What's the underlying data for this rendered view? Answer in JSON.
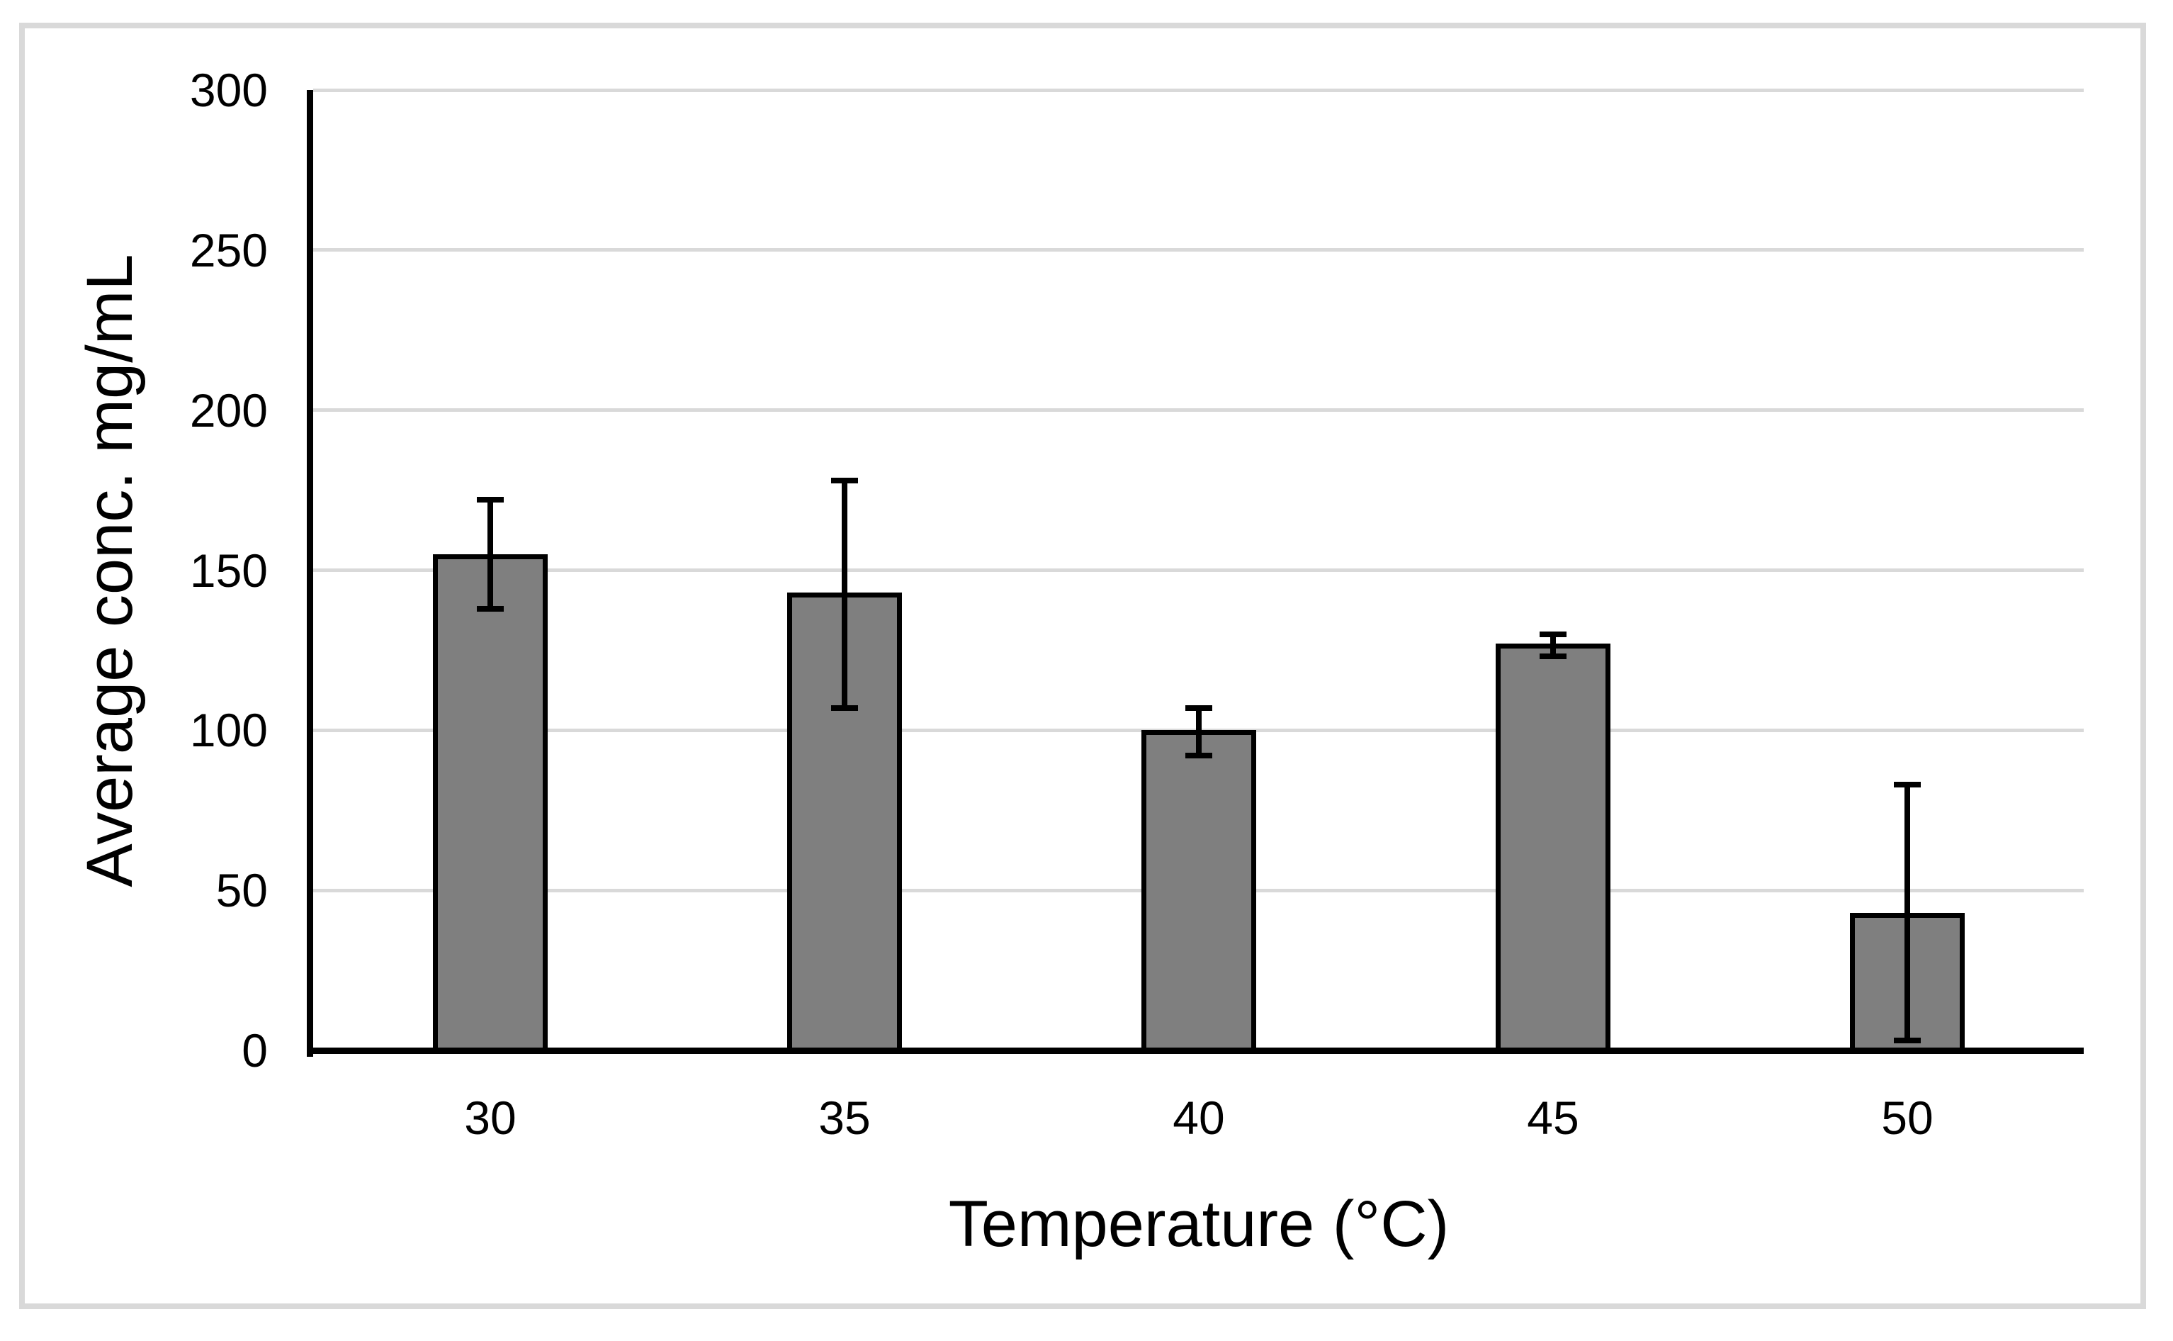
{
  "figure": {
    "background_color": "#ffffff",
    "border_color": "#d9d9d9"
  },
  "chart_data": {
    "type": "bar",
    "title": "",
    "xlabel": "Temperature (°C)",
    "ylabel": "Average conc. mg/mL",
    "categories": [
      "30",
      "35",
      "40",
      "45",
      "50"
    ],
    "values": [
      155,
      143,
      100,
      127,
      43
    ],
    "error_upper": [
      172,
      178,
      107,
      130,
      83
    ],
    "error_lower": [
      138,
      107,
      92,
      123,
      3
    ],
    "y_ticks": [
      0,
      50,
      100,
      150,
      200,
      250,
      300
    ],
    "ylim": [
      0,
      300
    ],
    "grid": "horizontal",
    "legend_position": "none",
    "bar_fill_color": "#7f7f7f",
    "bar_border_color": "#000000",
    "error_bar_color": "#000000",
    "gridline_color": "#d9d9d9",
    "axis_line_color": "#000000",
    "tick_label_color": "#000000",
    "axis_title_color": "#000000"
  }
}
